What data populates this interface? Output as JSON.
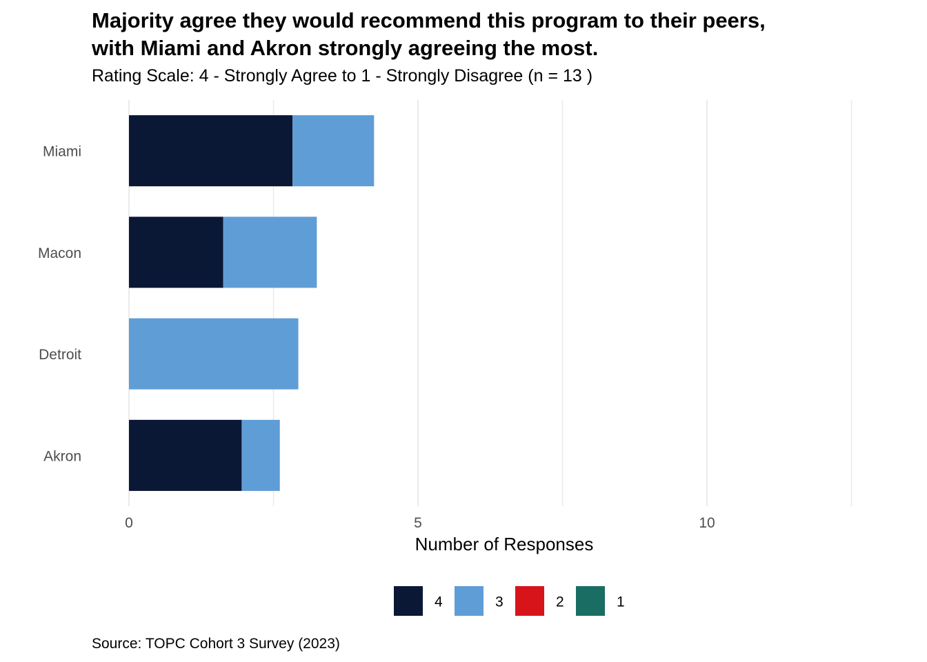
{
  "chart_data": {
    "type": "bar",
    "orientation": "horizontal",
    "stacked": true,
    "title_lines": [
      "Majority agree they would recommend this program to their peers,",
      "with Miami and Akron strongly agreeing the most."
    ],
    "subtitle": "Rating Scale: 4 - Strongly Agree to 1 - Strongly Disagree (n = 13 )",
    "xlabel": "Number of Responses",
    "ylabel": "",
    "caption": "Source: TOPC Cohort 3 Survey (2023)",
    "categories": [
      "Miami",
      "Macon",
      "Detroit",
      "Akron"
    ],
    "series": [
      {
        "name": "4",
        "color": "#0a1836",
        "values": [
          2.83,
          1.63,
          0,
          1.95
        ]
      },
      {
        "name": "3",
        "color": "#5f9dd6",
        "values": [
          1.41,
          1.62,
          2.93,
          0.66
        ]
      },
      {
        "name": "2",
        "color": "#d7141a",
        "values": [
          0,
          0,
          0,
          0
        ]
      },
      {
        "name": "1",
        "color": "#1a6d62",
        "values": [
          0,
          0,
          0,
          0
        ]
      }
    ],
    "xlim": [
      0,
      12.5
    ],
    "xticks": [
      0,
      5,
      10
    ],
    "xtick_labels": [
      "0",
      "5",
      "10"
    ],
    "grid": true,
    "legend_position": "bottom"
  }
}
